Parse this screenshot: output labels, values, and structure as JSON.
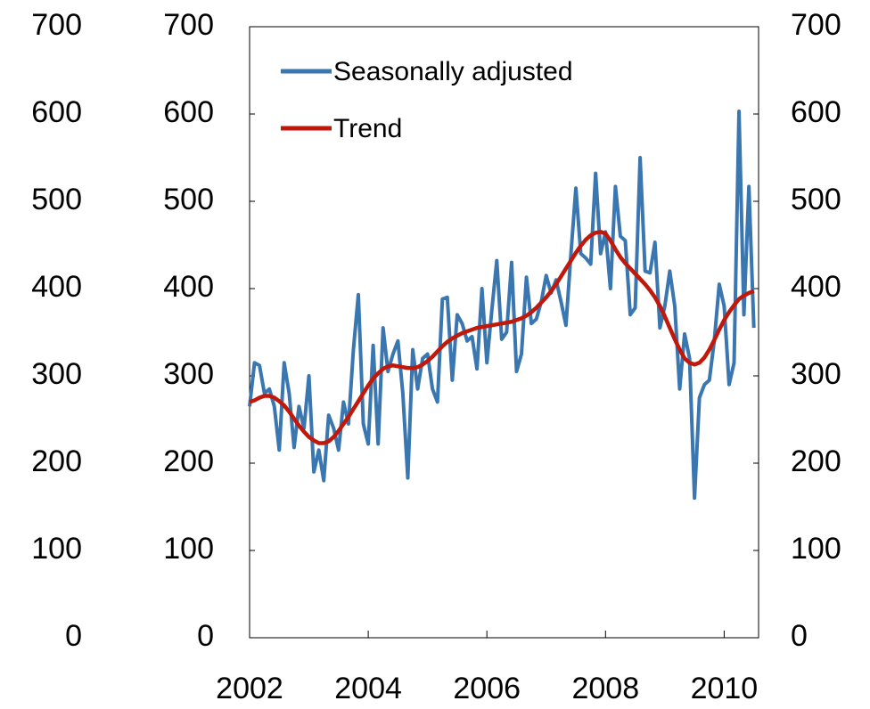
{
  "chart_data": {
    "type": "line",
    "x": [
      2002,
      2002.083,
      2002.167,
      2002.25,
      2002.333,
      2002.417,
      2002.5,
      2002.583,
      2002.667,
      2002.75,
      2002.833,
      2002.917,
      2003,
      2003.083,
      2003.167,
      2003.25,
      2003.333,
      2003.417,
      2003.5,
      2003.583,
      2003.667,
      2003.75,
      2003.833,
      2003.917,
      2004,
      2004.083,
      2004.167,
      2004.25,
      2004.333,
      2004.417,
      2004.5,
      2004.583,
      2004.667,
      2004.75,
      2004.833,
      2004.917,
      2005,
      2005.083,
      2005.167,
      2005.25,
      2005.333,
      2005.417,
      2005.5,
      2005.583,
      2005.667,
      2005.75,
      2005.833,
      2005.917,
      2006,
      2006.083,
      2006.167,
      2006.25,
      2006.333,
      2006.417,
      2006.5,
      2006.583,
      2006.667,
      2006.75,
      2006.833,
      2006.917,
      2007,
      2007.083,
      2007.167,
      2007.25,
      2007.333,
      2007.417,
      2007.5,
      2007.583,
      2007.667,
      2007.75,
      2007.833,
      2007.917,
      2008,
      2008.083,
      2008.167,
      2008.25,
      2008.333,
      2008.417,
      2008.5,
      2008.583,
      2008.667,
      2008.75,
      2008.833,
      2008.917,
      2009,
      2009.083,
      2009.167,
      2009.25,
      2009.333,
      2009.417,
      2009.5,
      2009.583,
      2009.667,
      2009.75,
      2009.833,
      2009.917,
      2010,
      2010.083,
      2010.167,
      2010.25,
      2010.333,
      2010.417,
      2010.5
    ],
    "series": [
      {
        "name": "Seasonally adjusted",
        "color": "#3a76b0",
        "values": [
          265,
          315,
          312,
          280,
          285,
          265,
          215,
          315,
          280,
          218,
          265,
          240,
          300,
          190,
          215,
          180,
          255,
          240,
          215,
          270,
          245,
          330,
          393,
          245,
          222,
          335,
          222,
          355,
          305,
          325,
          340,
          280,
          183,
          330,
          285,
          320,
          325,
          285,
          270,
          388,
          390,
          295,
          370,
          360,
          340,
          345,
          308,
          400,
          315,
          375,
          432,
          342,
          350,
          430,
          305,
          325,
          413,
          360,
          365,
          385,
          415,
          395,
          410,
          385,
          358,
          440,
          515,
          440,
          435,
          428,
          532,
          440,
          465,
          400,
          517,
          460,
          455,
          370,
          378,
          550,
          420,
          418,
          453,
          355,
          380,
          420,
          380,
          285,
          348,
          320,
          160,
          275,
          290,
          295,
          340,
          405,
          380,
          290,
          315,
          603,
          370,
          517,
          355
        ]
      },
      {
        "name": "Trend",
        "color": "#c0190b",
        "values": [
          270,
          272,
          275,
          277,
          277,
          275,
          271,
          266,
          259,
          251,
          243,
          236,
          230,
          226,
          223,
          223,
          225,
          230,
          237,
          245,
          253,
          262,
          271,
          280,
          289,
          297,
          303,
          308,
          311,
          312,
          311,
          310,
          309,
          309,
          310,
          313,
          317,
          322,
          328,
          334,
          339,
          343,
          346,
          349,
          351,
          353,
          355,
          356,
          357,
          358,
          359,
          360,
          361,
          362,
          364,
          366,
          369,
          373,
          378,
          384,
          390,
          397,
          405,
          414,
          423,
          432,
          441,
          449,
          456,
          461,
          464,
          465,
          463,
          455,
          445,
          436,
          429,
          423,
          417,
          411,
          405,
          398,
          390,
          380,
          368,
          355,
          342,
          330,
          320,
          315,
          313,
          315,
          321,
          330,
          341,
          353,
          364,
          373,
          381,
          388,
          392,
          395,
          397
        ]
      }
    ],
    "xlim": [
      2002,
      2010.58
    ],
    "xticks": [
      2002,
      2004,
      2006,
      2008,
      2010
    ],
    "ylim": [
      0,
      700
    ],
    "yticks": [
      0,
      100,
      200,
      300,
      400,
      500,
      600,
      700
    ],
    "y2lim": [
      0,
      700
    ],
    "y2ticks": [
      0,
      100,
      200,
      300,
      400,
      500,
      600,
      700
    ],
    "legend": "upper left"
  }
}
